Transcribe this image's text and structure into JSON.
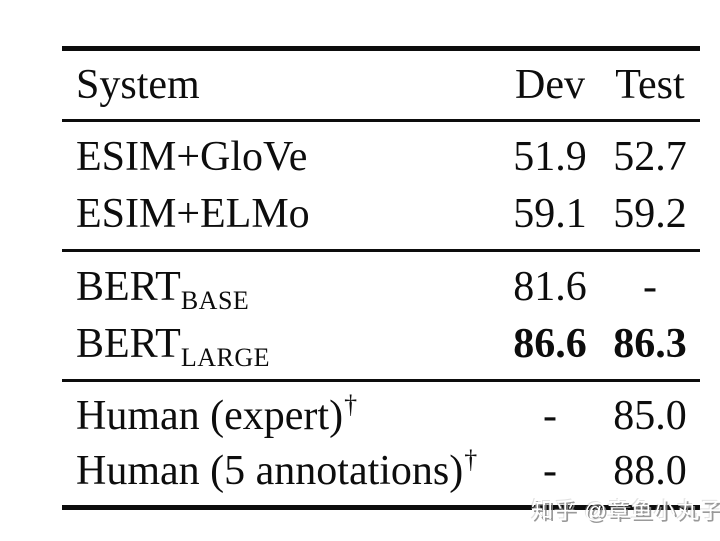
{
  "colors": {
    "background": "#ffffff",
    "text": "#0d0d0d",
    "rule": "#0d0d0d",
    "watermark_fill": "#ffffff",
    "watermark_shadow": "#878787"
  },
  "table": {
    "columns": [
      "System",
      "Dev",
      "Test"
    ],
    "sections": [
      {
        "name": "baselines",
        "rows": [
          {
            "system": "ESIM+GloVe",
            "dev": "51.9",
            "test": "52.7"
          },
          {
            "system": "ESIM+ELMo",
            "dev": "59.1",
            "test": "59.2"
          }
        ]
      },
      {
        "name": "bert",
        "rows": [
          {
            "system": "BERT",
            "system_subscript": "BASE",
            "dev": "81.6",
            "test": "-"
          },
          {
            "system": "BERT",
            "system_subscript": "LARGE",
            "dev": "86.6",
            "test": "86.3"
          }
        ]
      },
      {
        "name": "human",
        "rows": [
          {
            "system": "Human (expert)",
            "dagger": "†",
            "dev": "-",
            "test": "85.0"
          },
          {
            "system": "Human (5 annotations)",
            "dagger": "†",
            "dev": "-",
            "test": "88.0"
          }
        ]
      }
    ]
  },
  "watermark": {
    "text": "知乎 @章鱼小丸子"
  }
}
